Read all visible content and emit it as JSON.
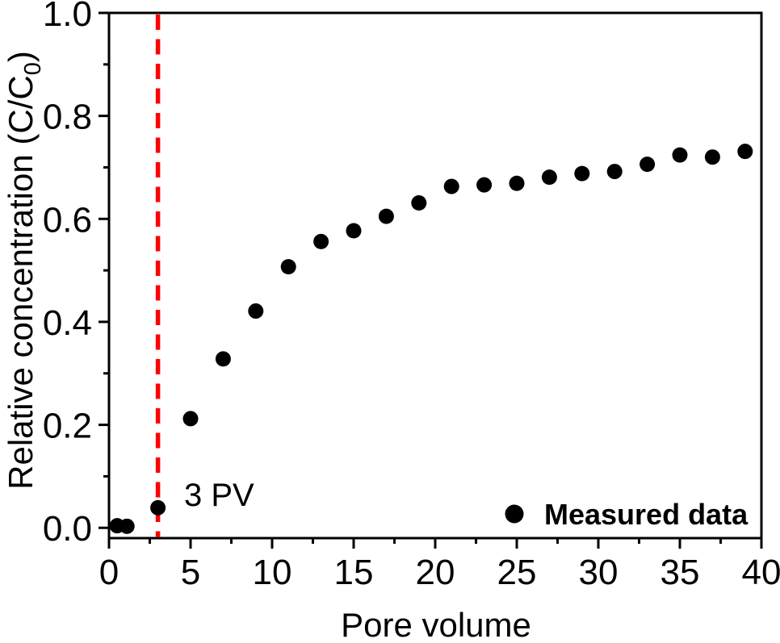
{
  "figure": {
    "background": "#ffffff"
  },
  "chart_data": {
    "type": "scatter",
    "title": "",
    "xlabel": "Pore volume",
    "ylabel": "Relative concentration (C/C0)",
    "ylabel_parts": {
      "base": "Relative concentration (C/C",
      "sub": "0",
      "close": ")"
    },
    "xlim": [
      0,
      40
    ],
    "ylim": [
      -0.02,
      1.0
    ],
    "x_major_ticks": [
      0,
      5,
      10,
      15,
      20,
      25,
      30,
      35,
      40
    ],
    "x_minor_tick_step": 2.5,
    "y_major_ticks": [
      0.0,
      0.2,
      0.4,
      0.6,
      0.8,
      1.0
    ],
    "y_minor_tick_step": 0.1,
    "grid": false,
    "axis_color": "#000000",
    "series": [
      {
        "name": "Measured data",
        "type": "scatter",
        "marker": "circle",
        "color": "#000000",
        "points": [
          [
            0.5,
            0.004
          ],
          [
            1.1,
            0.003
          ],
          [
            3,
            0.039
          ],
          [
            5,
            0.212
          ],
          [
            7,
            0.328
          ],
          [
            9,
            0.421
          ],
          [
            11,
            0.507
          ],
          [
            13,
            0.556
          ],
          [
            15,
            0.577
          ],
          [
            17,
            0.605
          ],
          [
            19,
            0.631
          ],
          [
            21,
            0.663
          ],
          [
            23,
            0.666
          ],
          [
            25,
            0.669
          ],
          [
            27,
            0.681
          ],
          [
            29,
            0.688
          ],
          [
            31,
            0.692
          ],
          [
            33,
            0.706
          ],
          [
            35,
            0.724
          ],
          [
            37,
            0.72
          ],
          [
            39,
            0.731
          ]
        ]
      }
    ],
    "reference_line": {
      "x": 3,
      "color": "#ff0000",
      "style": "dashed"
    },
    "annotation": {
      "text": "3 PV"
    },
    "legend": {
      "label": "Measured data",
      "position": "lower-right",
      "marker_color": "#000000"
    }
  }
}
